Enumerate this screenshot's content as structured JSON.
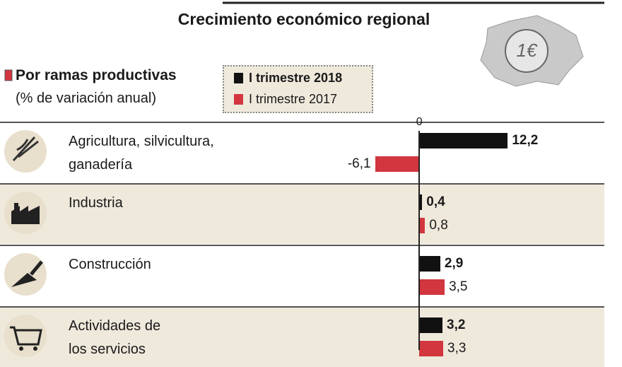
{
  "chart_data": {
    "type": "bar",
    "orientation": "horizontal",
    "title": "Crecimiento económico regional",
    "subtitle": "Por ramas productivas",
    "unit_label": "(% de variación anual)",
    "categories": [
      "Agricultura, silvicultura, ganadería",
      "Industria",
      "Construcción",
      "Actividades de los servicios"
    ],
    "series": [
      {
        "name": "I trimestre 2018",
        "color": "#111111",
        "values": [
          12.2,
          0.4,
          2.9,
          3.2
        ],
        "value_labels": [
          "12,2",
          "0,4",
          "2,9",
          "3,2"
        ]
      },
      {
        "name": "I trimestre 2017",
        "color": "#d2363f",
        "values": [
          -6.1,
          0.8,
          3.5,
          3.3
        ],
        "value_labels": [
          "-6,1",
          "0,8",
          "3,5",
          "3,3"
        ]
      }
    ],
    "xlim": [
      -12,
      26
    ],
    "xticks": [
      0
    ]
  }
}
